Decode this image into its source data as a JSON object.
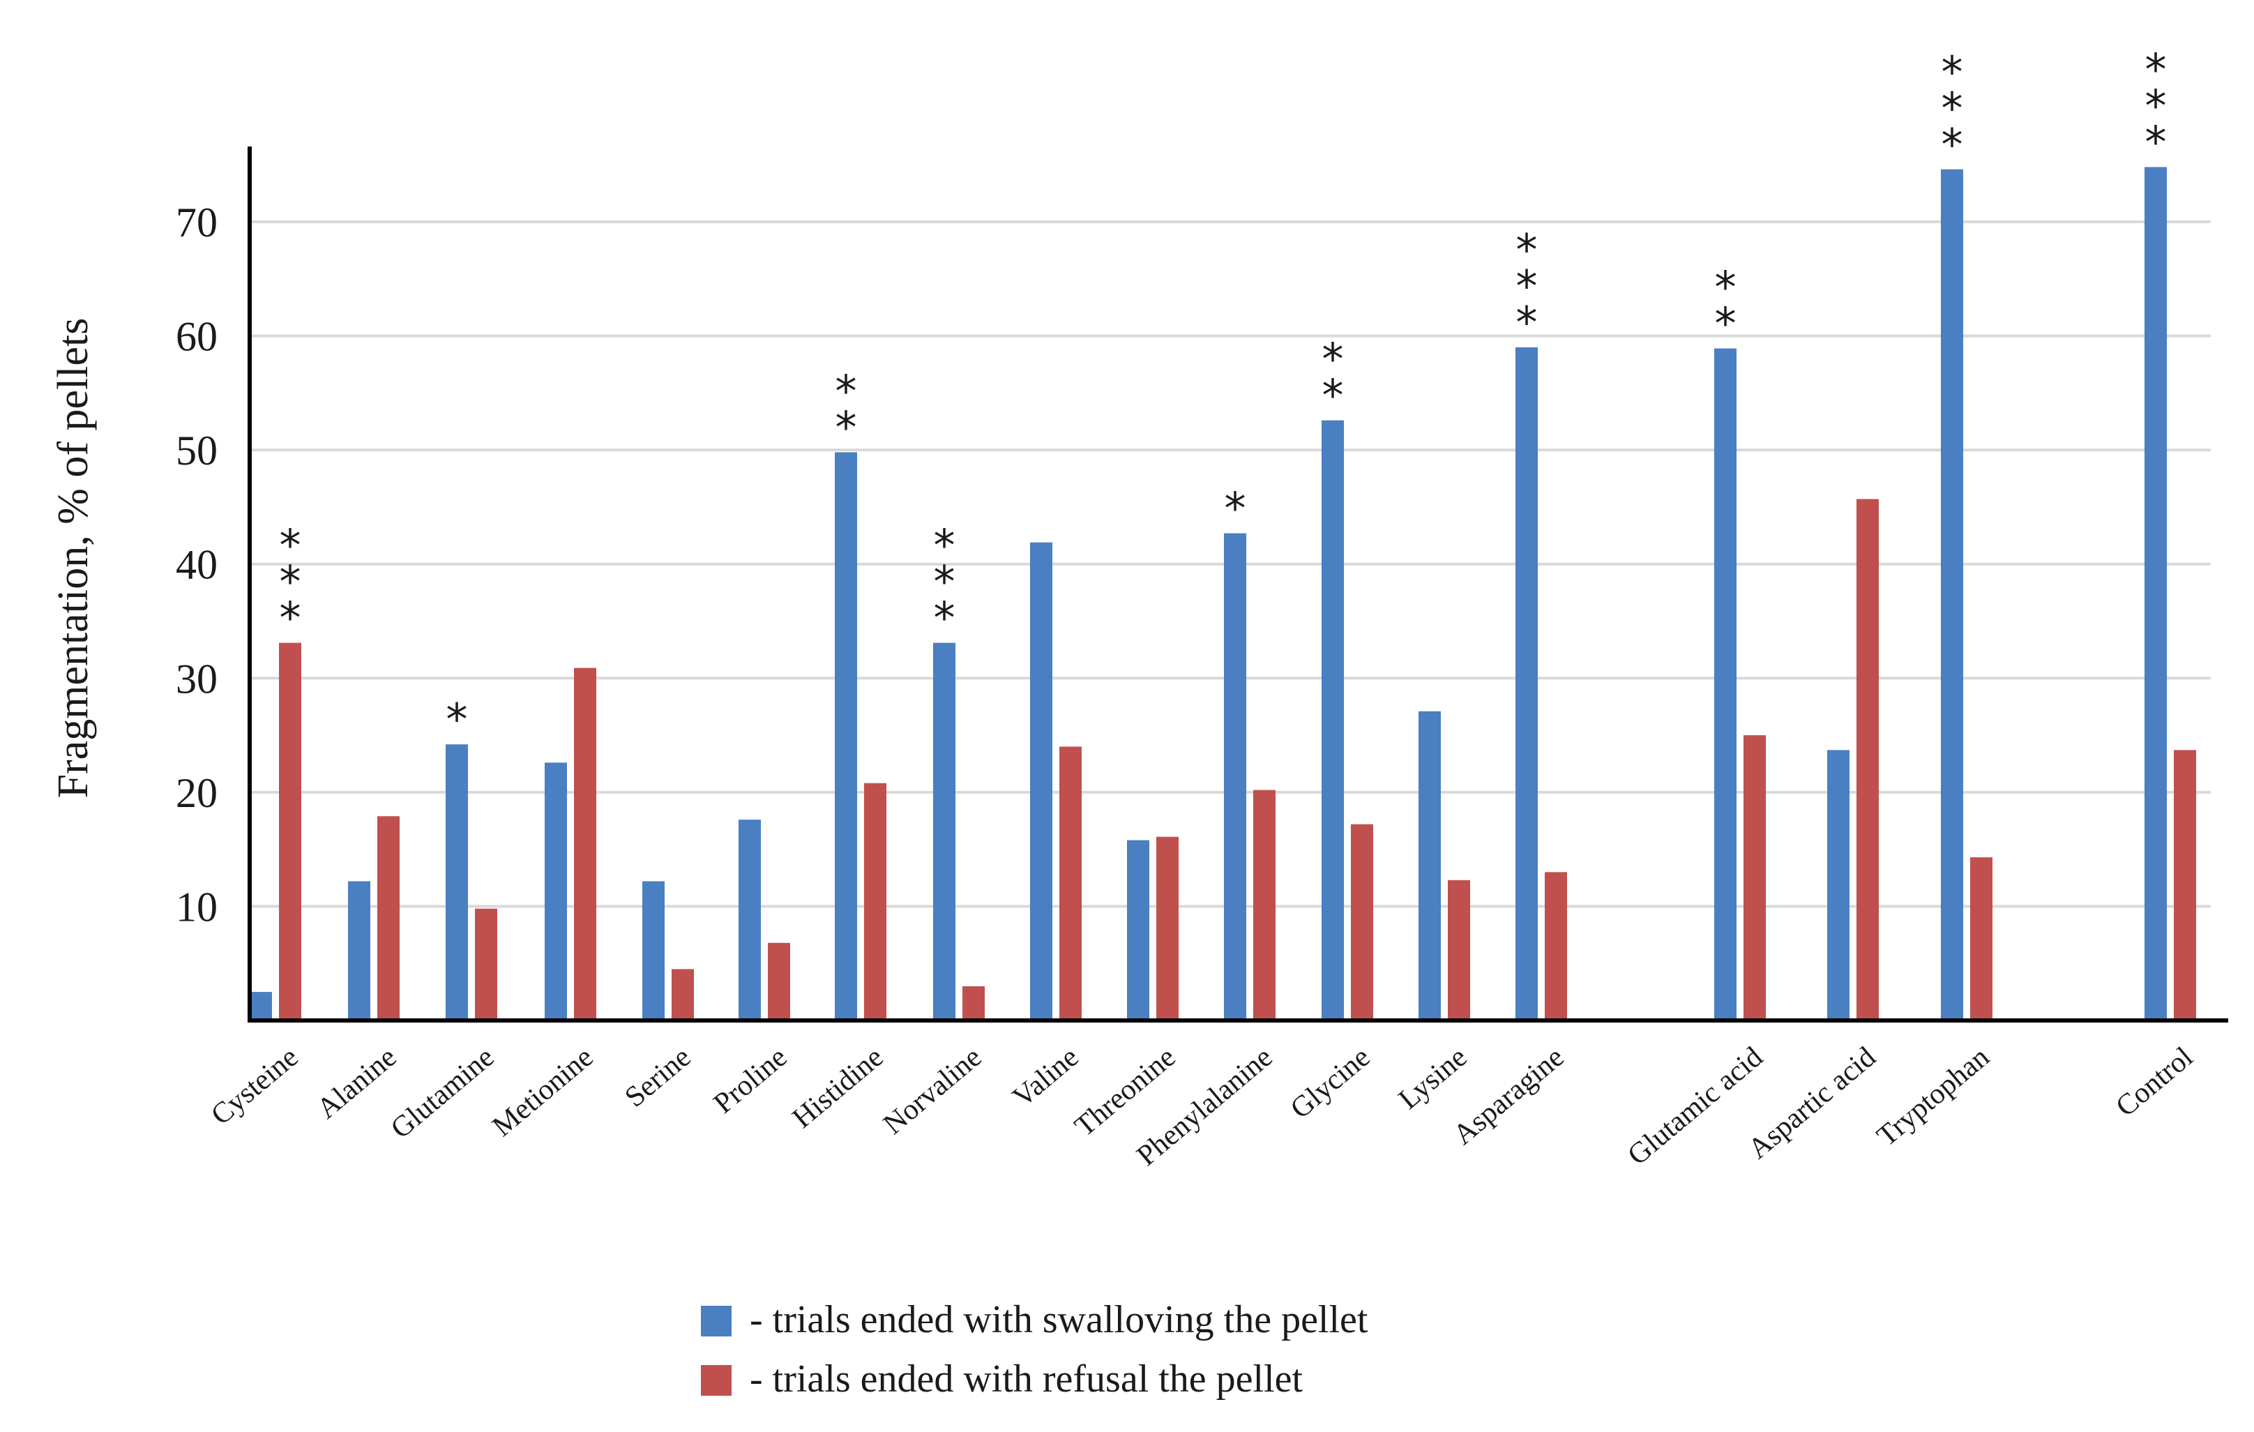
{
  "chart_data": {
    "type": "bar",
    "title": "",
    "xlabel": "",
    "ylabel": "Fragmentation, % of pellets",
    "ylim": [
      0,
      76
    ],
    "yticks": [
      10,
      20,
      30,
      40,
      50,
      60,
      70
    ],
    "grid": true,
    "legend_position": "bottom-center",
    "categories": [
      "Cysteine",
      "Alanine",
      "Glutamine",
      "Metionine",
      "Serine",
      "Proline",
      "Histidine",
      "Norvaline",
      "Valine",
      "Threonine",
      "Phenylalanine",
      "Glycine",
      "Lysine",
      "Asparagine",
      "Glutamic acid",
      "Aspartic acid",
      "Tryptophan",
      "Control"
    ],
    "series": [
      {
        "name": "- trials ended with swalloving the pellet",
        "color": "#4a7fc1",
        "values": [
          2.5,
          12.2,
          24.2,
          22.6,
          12.2,
          17.6,
          49.8,
          33.1,
          41.9,
          15.8,
          42.7,
          52.6,
          27.1,
          59.0,
          58.9,
          23.7,
          74.6,
          74.8
        ]
      },
      {
        "name": "- trials ended with refusal the pellet",
        "color": "#c0504d",
        "values": [
          33.1,
          17.9,
          9.8,
          30.9,
          4.5,
          6.8,
          20.8,
          3.0,
          24.0,
          16.1,
          20.2,
          17.2,
          12.3,
          13.0,
          25.0,
          45.7,
          14.3,
          23.7
        ]
      }
    ],
    "annotations": [
      {
        "category": "Cysteine",
        "series": 1,
        "label": "***"
      },
      {
        "category": "Glutamine",
        "series": 0,
        "label": "*"
      },
      {
        "category": "Histidine",
        "series": 0,
        "label": "**"
      },
      {
        "category": "Norvaline",
        "series": 0,
        "label": "***"
      },
      {
        "category": "Phenylalanine",
        "series": 0,
        "label": "*"
      },
      {
        "category": "Glycine",
        "series": 0,
        "label": "**"
      },
      {
        "category": "Asparagine",
        "series": 0,
        "label": "***"
      },
      {
        "category": "Glutamic acid",
        "series": 0,
        "label": "**"
      },
      {
        "category": "Tryptophan",
        "series": 0,
        "label": "***"
      },
      {
        "category": "Control",
        "series": 0,
        "label": "***"
      }
    ]
  }
}
